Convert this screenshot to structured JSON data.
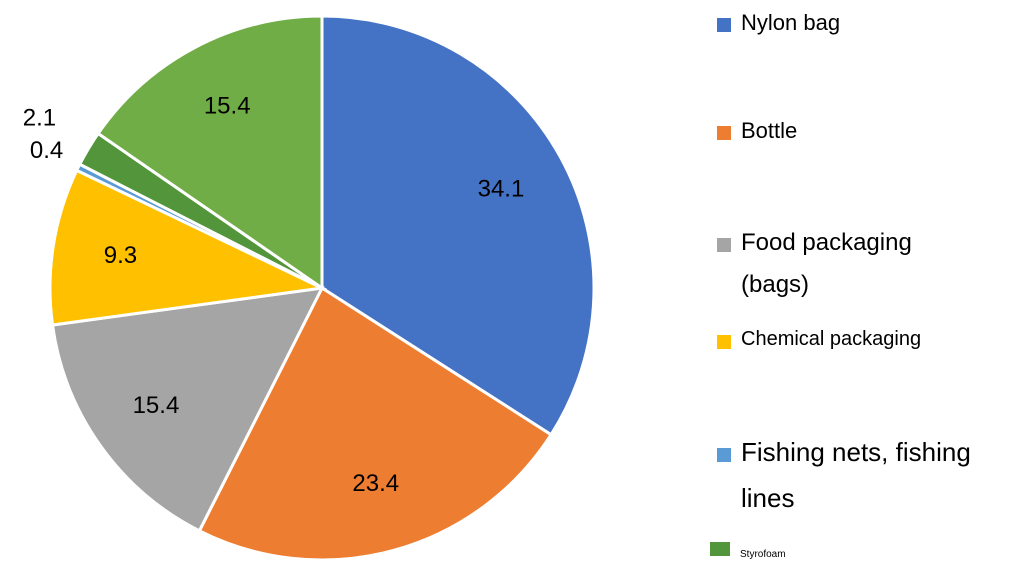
{
  "chart_data": {
    "type": "pie",
    "categories": [
      "Nylon bag",
      "Bottle",
      "Food packaging (bags)",
      "Chemical packaging",
      "Fishing nets, fishing lines",
      "Styrofoam",
      null
    ],
    "values": [
      34.1,
      23.4,
      15.4,
      9.3,
      0.4,
      2.1,
      15.4
    ],
    "colors": [
      "#4472c4",
      "#ed7d31",
      "#a5a5a5",
      "#ffc000",
      "#5b9bd5",
      "#52953a",
      "#70ad47"
    ],
    "legend": "right"
  }
}
